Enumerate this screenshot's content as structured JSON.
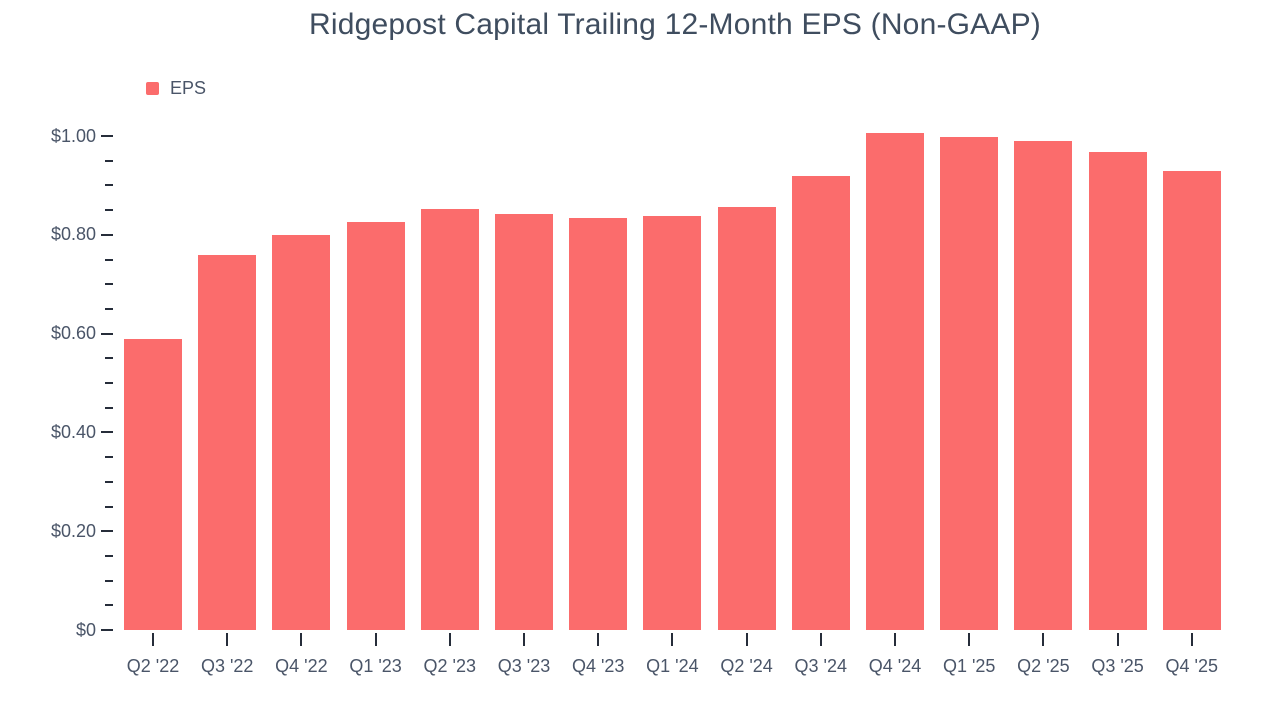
{
  "chart": {
    "title": "Ridgepost Capital Trailing 12-Month EPS (Non-GAAP)",
    "legend": {
      "items": [
        {
          "label": "EPS",
          "color": "#fb6c6c"
        }
      ]
    }
  },
  "chart_data": {
    "type": "bar",
    "title": "Ridgepost Capital Trailing 12-Month EPS (Non-GAAP)",
    "categories": [
      "Q2 '22",
      "Q3 '22",
      "Q4 '22",
      "Q1 '23",
      "Q2 '23",
      "Q3 '23",
      "Q4 '23",
      "Q1 '24",
      "Q2 '24",
      "Q3 '24",
      "Q4 '24",
      "Q1 '25",
      "Q2 '25",
      "Q3 '25",
      "Q4 '25"
    ],
    "series": [
      {
        "name": "EPS",
        "color": "#fb6c6c",
        "values": [
          0.59,
          0.76,
          0.8,
          0.825,
          0.853,
          0.843,
          0.833,
          0.838,
          0.857,
          0.92,
          1.007,
          0.998,
          0.989,
          0.967,
          0.929
        ]
      }
    ],
    "xlabel": "",
    "ylabel": "",
    "y_axis": {
      "min": 0,
      "max": 1.05,
      "major_tick_interval": 0.2,
      "minor_tick_interval": 0.05,
      "tick_labels": [
        "$0",
        "$0.20",
        "$0.40",
        "$0.60",
        "$0.80",
        "$1.00"
      ],
      "tick_prefix": "$"
    },
    "grid": false,
    "legend_position": "top-left"
  }
}
